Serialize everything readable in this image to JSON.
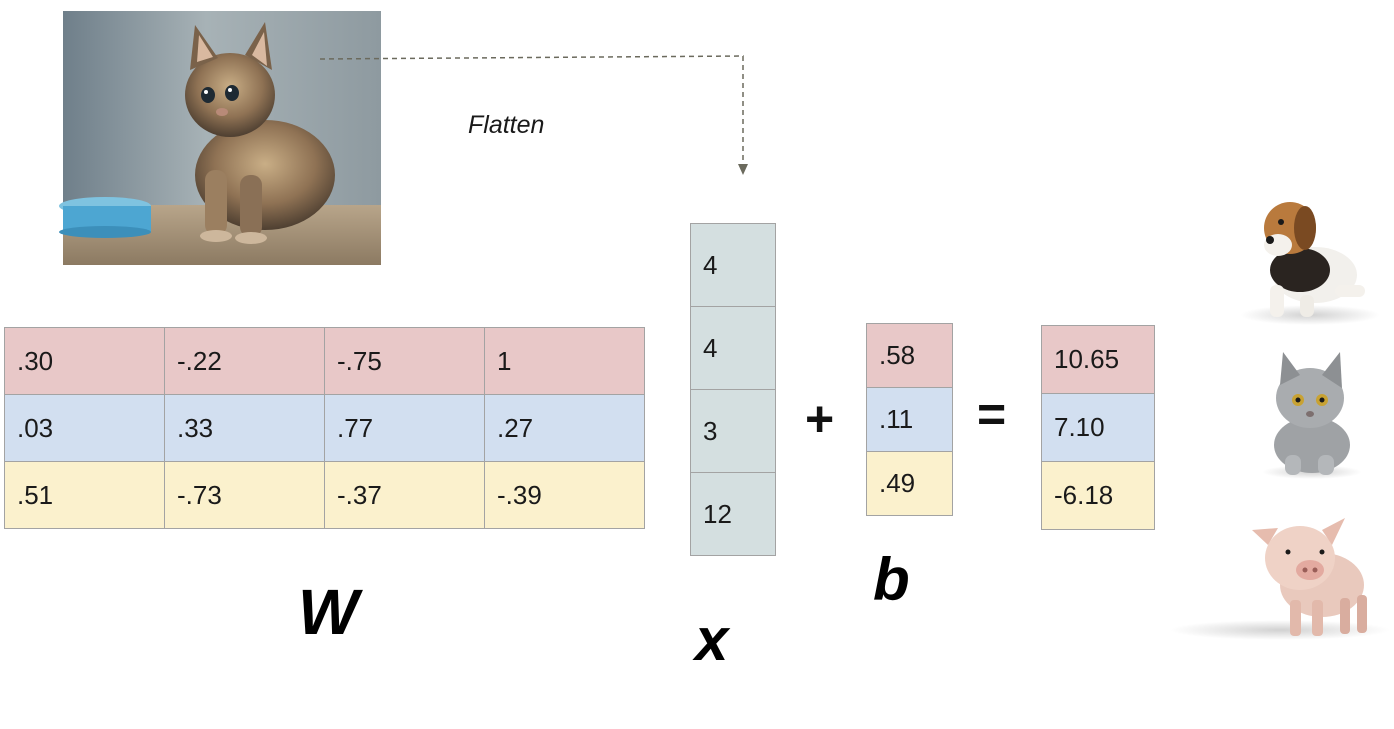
{
  "flatten_label": "Flatten",
  "W": {
    "label": "W",
    "rows": [
      [
        ".30",
        "-.22",
        "-.75",
        "1"
      ],
      [
        ".03",
        ".33",
        ".77",
        ".27"
      ],
      [
        ".51",
        "-.73",
        "-.37",
        "-.39"
      ]
    ]
  },
  "x": {
    "label": "x",
    "values": [
      "4",
      "4",
      "3",
      "12"
    ]
  },
  "plus": "+",
  "b": {
    "label": "b",
    "values": [
      ".58",
      ".11",
      ".49"
    ]
  },
  "equals": "=",
  "scores": [
    "10.65",
    "7.10",
    "-6.18"
  ],
  "row_colors": [
    "#e8c8c8",
    "#d2dff0",
    "#fbf1cd"
  ],
  "x_color": "#d4dfe0",
  "classes": [
    "dog-image",
    "cat-image",
    "pig-image"
  ]
}
